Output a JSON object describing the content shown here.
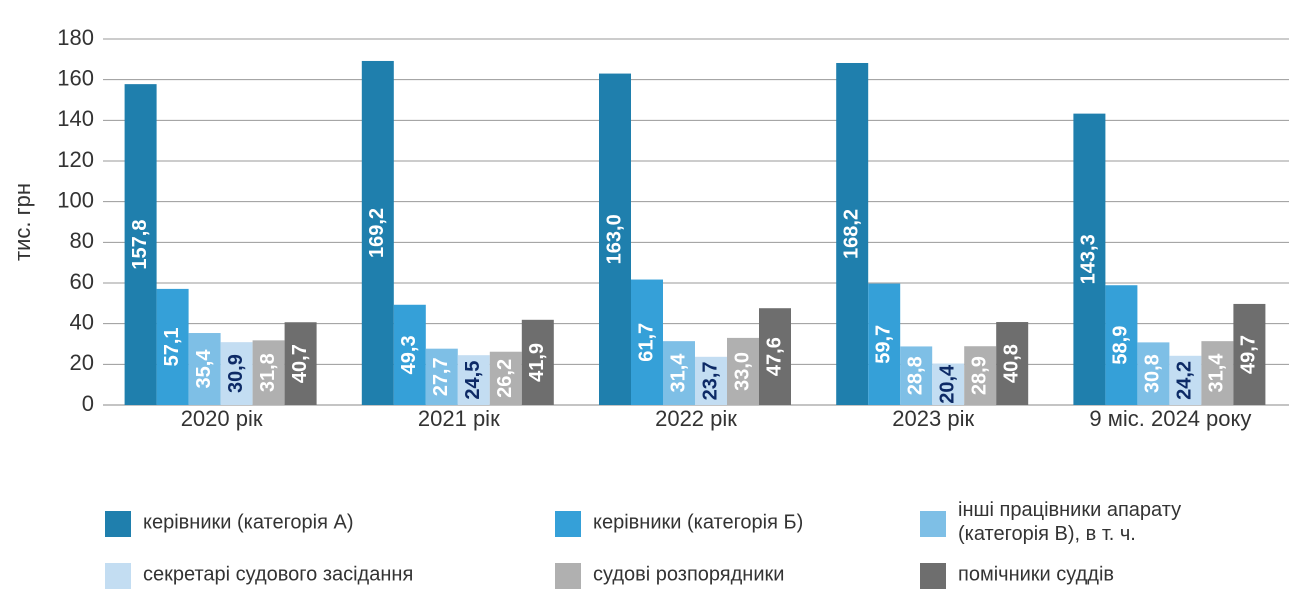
{
  "chart_data": {
    "type": "bar",
    "y_label": "тис. грн",
    "categories": [
      "2020 рік",
      "2021 рік",
      "2022 рік",
      "2023 рік",
      "9 міс. 2024 року"
    ],
    "series": [
      {
        "name": "керівники (категорія А)",
        "color": "#1f7fad",
        "label_color": "#ffffff",
        "values": [
          157.8,
          169.2,
          163.0,
          168.2,
          143.3
        ],
        "value_labels": [
          "157,8",
          "169,2",
          "163,0",
          "168,2",
          "143,3"
        ]
      },
      {
        "name": "керівники (категорія Б)",
        "color": "#35a0d8",
        "label_color": "#ffffff",
        "values": [
          57.1,
          49.3,
          61.7,
          59.7,
          58.9
        ],
        "value_labels": [
          "57,1",
          "49,3",
          "61,7",
          "59,7",
          "58,9"
        ]
      },
      {
        "name": "інші працівники апарату (категорія В), в т. ч.",
        "color": "#7ebfe6",
        "label_color": "#ffffff",
        "values": [
          35.4,
          27.7,
          31.4,
          28.8,
          30.8
        ],
        "value_labels": [
          "35,4",
          "27,7",
          "31,4",
          "28,8",
          "30,8"
        ]
      },
      {
        "name": "секретарі судового засідання",
        "color": "#c3ddf2",
        "label_color": "#0d2a66",
        "values": [
          30.9,
          24.5,
          23.7,
          20.4,
          24.2
        ],
        "value_labels": [
          "30,9",
          "24,5",
          "23,7",
          "20,4",
          "24,2"
        ]
      },
      {
        "name": "судові розпорядники",
        "color": "#b0b0b0",
        "label_color": "#ffffff",
        "values": [
          31.8,
          26.2,
          33.0,
          28.9,
          31.4
        ],
        "value_labels": [
          "31,8",
          "26,2",
          "33,0",
          "28,9",
          "31,4"
        ]
      },
      {
        "name": "помічники суддів",
        "color": "#6e6e6e",
        "label_color": "#ffffff",
        "values": [
          40.7,
          41.9,
          47.6,
          40.8,
          49.7
        ],
        "value_labels": [
          "40,7",
          "41,9",
          "47,6",
          "40,8",
          "49,7"
        ]
      }
    ],
    "ylim": [
      0,
      180
    ],
    "yticks": [
      0,
      20,
      40,
      60,
      80,
      100,
      120,
      140,
      160,
      180
    ],
    "grid": true
  }
}
